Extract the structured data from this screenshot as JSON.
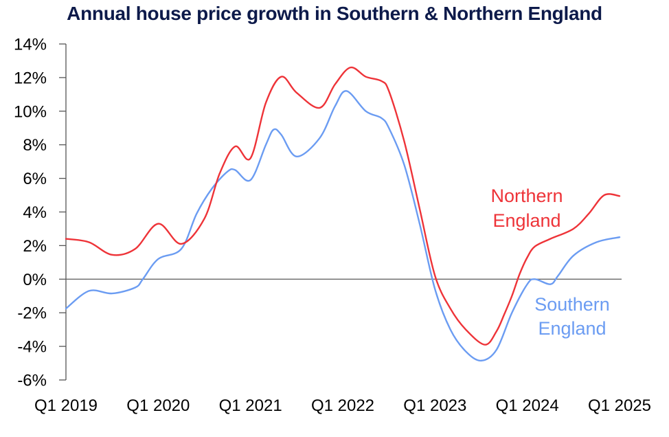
{
  "chart_data": {
    "type": "line",
    "title": "Annual house price growth in Southern & Northern England",
    "xlabel": "",
    "ylabel": "",
    "x_unit": "months since Q1 2019",
    "xlim": [
      0,
      72
    ],
    "ylim": [
      -6,
      14
    ],
    "y_ticks": [
      14,
      12,
      10,
      8,
      6,
      4,
      2,
      0,
      -2,
      -4,
      -6
    ],
    "y_tick_labels": [
      "14%",
      "12%",
      "10%",
      "8%",
      "6%",
      "4%",
      "2%",
      "0%",
      "-2%",
      "-4%",
      "-6%"
    ],
    "x_ticks": [
      0,
      12,
      24,
      36,
      48,
      60,
      72
    ],
    "x_tick_labels": [
      "Q1 2019",
      "Q1 2020",
      "Q1 2021",
      "Q1 2022",
      "Q1 2023",
      "Q1 2024",
      "Q1 2025"
    ],
    "zero_line": true,
    "grid": false,
    "legend": "inline labels near line ends (right)",
    "series": [
      {
        "name": "Northern England",
        "label_lines": [
          "Northern",
          "England"
        ],
        "color": "#ee3338",
        "points": [
          [
            0,
            2.4
          ],
          [
            3,
            2.2
          ],
          [
            6,
            1.45
          ],
          [
            9,
            1.8
          ],
          [
            12,
            3.3
          ],
          [
            15,
            2.1
          ],
          [
            18,
            3.6
          ],
          [
            20,
            6.3
          ],
          [
            22,
            7.9
          ],
          [
            24,
            7.2
          ],
          [
            26,
            10.5
          ],
          [
            28,
            12.05
          ],
          [
            30,
            11.1
          ],
          [
            33,
            10.2
          ],
          [
            35,
            11.6
          ],
          [
            37,
            12.6
          ],
          [
            39,
            12.05
          ],
          [
            41,
            11.8
          ],
          [
            42,
            11.2
          ],
          [
            44,
            8.2
          ],
          [
            46,
            4.2
          ],
          [
            48,
            0.2
          ],
          [
            50,
            -1.75
          ],
          [
            52,
            -3.0
          ],
          [
            54.5,
            -3.9
          ],
          [
            56,
            -3.1
          ],
          [
            57,
            -2.1
          ],
          [
            58,
            -1.0
          ],
          [
            59,
            0.3
          ],
          [
            60,
            1.3
          ],
          [
            61,
            1.95
          ],
          [
            63,
            2.4
          ],
          [
            66,
            3.0
          ],
          [
            68,
            3.9
          ],
          [
            70,
            5.0
          ],
          [
            72,
            4.95
          ]
        ]
      },
      {
        "name": "Southern England",
        "label_lines": [
          "Southern",
          "England"
        ],
        "color": "#6b9cf2",
        "points": [
          [
            0,
            -1.75
          ],
          [
            3,
            -0.7
          ],
          [
            6,
            -0.85
          ],
          [
            9,
            -0.5
          ],
          [
            10,
            0.0
          ],
          [
            12,
            1.2
          ],
          [
            15,
            1.8
          ],
          [
            17,
            3.9
          ],
          [
            19,
            5.4
          ],
          [
            21,
            6.4
          ],
          [
            22,
            6.5
          ],
          [
            24,
            5.9
          ],
          [
            26,
            8.0
          ],
          [
            27,
            8.9
          ],
          [
            28,
            8.6
          ],
          [
            30,
            7.3
          ],
          [
            33,
            8.4
          ],
          [
            35,
            10.3
          ],
          [
            36.5,
            11.2
          ],
          [
            39,
            10.0
          ],
          [
            41,
            9.6
          ],
          [
            42,
            9.0
          ],
          [
            44,
            6.8
          ],
          [
            46,
            3.3
          ],
          [
            48,
            -0.6
          ],
          [
            50,
            -3.0
          ],
          [
            52,
            -4.3
          ],
          [
            54,
            -4.85
          ],
          [
            56,
            -4.2
          ],
          [
            58,
            -2.0
          ],
          [
            60,
            -0.3
          ],
          [
            61,
            0.0
          ],
          [
            63,
            -0.3
          ],
          [
            64,
            0.2
          ],
          [
            66,
            1.4
          ],
          [
            69,
            2.2
          ],
          [
            72,
            2.5
          ]
        ]
      }
    ]
  }
}
